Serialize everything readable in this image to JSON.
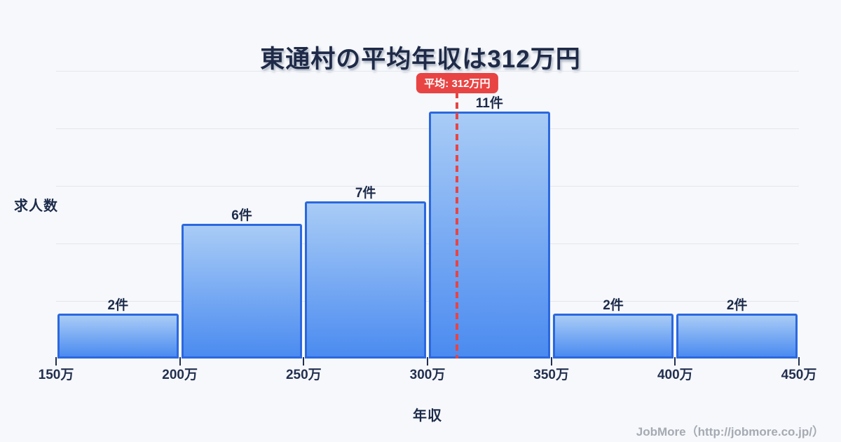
{
  "title": "東通村の平均年収は312万円",
  "chart_data": {
    "type": "bar",
    "subtype": "histogram",
    "title": "東通村の平均年収は312万円",
    "xlabel": "年収",
    "ylabel": "求人数",
    "categories": [
      "150万",
      "200万",
      "250万",
      "300万",
      "350万",
      "400万",
      "450万"
    ],
    "values": [
      2,
      6,
      7,
      11,
      2,
      2
    ],
    "bar_labels": [
      "2件",
      "6件",
      "7件",
      "11件",
      "2件",
      "2件"
    ],
    "unit": "件",
    "x_range_man_yen": [
      150,
      450
    ],
    "bin_width_man_yen": 50,
    "ylim": [
      0,
      12.8
    ],
    "grid": "horizontal",
    "legend": "none",
    "mean": {
      "label": "平均: 312万円",
      "value_man_yen": 312
    },
    "colors": {
      "background": "#f7f8fb",
      "bar_fill_top": "#a9ccf6",
      "bar_fill_bottom": "#4b8bf0",
      "bar_border": "#2b68e0",
      "mean_line": "#e84444",
      "title_text": "#1e2a47",
      "tick_text": "#22304f",
      "gridline": "#e3e6ee"
    }
  },
  "footer": {
    "credit": "JobMore（http://jobmore.co.jp/）"
  }
}
